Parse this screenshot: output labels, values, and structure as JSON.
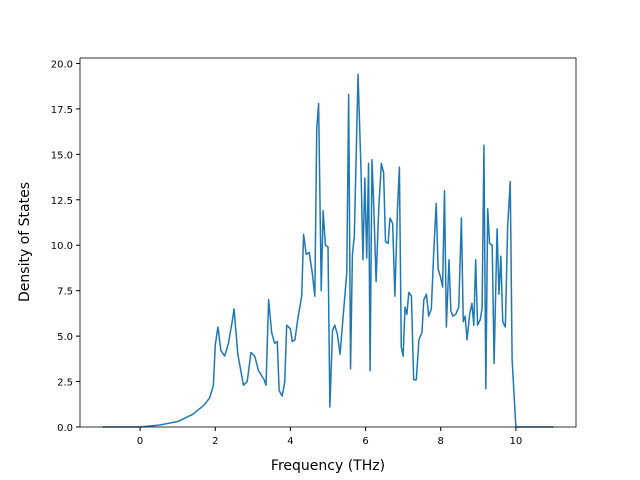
{
  "chart_data": {
    "type": "line",
    "x_label": "Frequency (THz)",
    "y_label": "Density of States",
    "xlim": [
      -1.6,
      11.6
    ],
    "ylim": [
      0,
      20.3
    ],
    "xticks": [
      0,
      2,
      4,
      6,
      8,
      10
    ],
    "yticks": [
      {
        "value": 0,
        "label": "0.0"
      },
      {
        "value": 2.5,
        "label": "2.5"
      },
      {
        "value": 5,
        "label": "5.0"
      },
      {
        "value": 7.5,
        "label": "7.5"
      },
      {
        "value": 10,
        "label": "10.0"
      },
      {
        "value": 12.5,
        "label": "12.5"
      },
      {
        "value": 15,
        "label": "15.0"
      },
      {
        "value": 17.5,
        "label": "17.5"
      },
      {
        "value": 20,
        "label": "20.0"
      }
    ],
    "x": [
      -1,
      0,
      0.5,
      1.0,
      1.4,
      1.7,
      1.85,
      1.95,
      2.0,
      2.07,
      2.15,
      2.25,
      2.35,
      2.45,
      2.5,
      2.6,
      2.75,
      2.85,
      2.95,
      3.05,
      3.15,
      3.3,
      3.35,
      3.42,
      3.5,
      3.58,
      3.65,
      3.7,
      3.78,
      3.85,
      3.9,
      4.0,
      4.05,
      4.12,
      4.2,
      4.3,
      4.35,
      4.42,
      4.5,
      4.58,
      4.65,
      4.7,
      4.75,
      4.82,
      4.87,
      4.93,
      5.0,
      5.05,
      5.12,
      5.18,
      5.25,
      5.32,
      5.4,
      5.5,
      5.55,
      5.6,
      5.65,
      5.7,
      5.8,
      5.88,
      5.93,
      5.98,
      6.03,
      6.08,
      6.12,
      6.17,
      6.22,
      6.28,
      6.35,
      6.42,
      6.48,
      6.53,
      6.6,
      6.65,
      6.72,
      6.78,
      6.85,
      6.9,
      6.95,
      7.0,
      7.05,
      7.1,
      7.15,
      7.22,
      7.28,
      7.35,
      7.42,
      7.5,
      7.55,
      7.62,
      7.68,
      7.75,
      7.82,
      7.88,
      7.93,
      8.0,
      8.05,
      8.1,
      8.15,
      8.22,
      8.27,
      8.32,
      8.4,
      8.48,
      8.55,
      8.6,
      8.65,
      8.7,
      8.77,
      8.83,
      8.88,
      8.93,
      8.98,
      9.05,
      9.1,
      9.15,
      9.2,
      9.25,
      9.3,
      9.37,
      9.42,
      9.5,
      9.55,
      9.6,
      9.65,
      9.72,
      9.78,
      9.85,
      9.9,
      10.0,
      11.0
    ],
    "series": [
      {
        "color": "#1f77b4",
        "values": [
          0,
          0,
          0.1,
          0.3,
          0.7,
          1.2,
          1.6,
          2.3,
          4.5,
          5.5,
          4.2,
          3.9,
          4.6,
          5.8,
          6.5,
          4.0,
          2.3,
          2.5,
          4.1,
          3.9,
          3.1,
          2.6,
          2.3,
          7.0,
          5.2,
          4.6,
          4.7,
          2.0,
          1.7,
          2.5,
          5.6,
          5.4,
          4.7,
          4.8,
          6.0,
          7.2,
          10.6,
          9.5,
          9.6,
          8.5,
          7.2,
          16.4,
          17.8,
          7.5,
          11.9,
          10.0,
          9.9,
          1.1,
          5.3,
          5.6,
          5.1,
          4.0,
          6.0,
          8.5,
          18.3,
          3.2,
          9.5,
          10.5,
          19.4,
          14.0,
          9.2,
          13.7,
          9.3,
          14.5,
          3.1,
          14.7,
          12.0,
          8.0,
          12.0,
          14.5,
          14.0,
          10.2,
          10.1,
          11.5,
          11.2,
          7.2,
          12.0,
          14.3,
          4.4,
          3.9,
          6.6,
          6.2,
          7.4,
          7.2,
          2.6,
          2.6,
          4.8,
          5.2,
          7.0,
          7.3,
          6.1,
          6.5,
          9.9,
          12.3,
          8.7,
          8.2,
          7.7,
          13.0,
          5.5,
          9.2,
          6.4,
          6.1,
          6.2,
          6.6,
          11.5,
          5.8,
          6.1,
          4.8,
          6.2,
          6.8,
          5.6,
          9.2,
          5.6,
          5.9,
          6.5,
          15.5,
          2.1,
          12.0,
          10.1,
          10.0,
          3.5,
          10.9,
          7.3,
          9.4,
          5.8,
          5.5,
          11.0,
          13.5,
          3.7,
          0,
          0
        ]
      }
    ]
  }
}
